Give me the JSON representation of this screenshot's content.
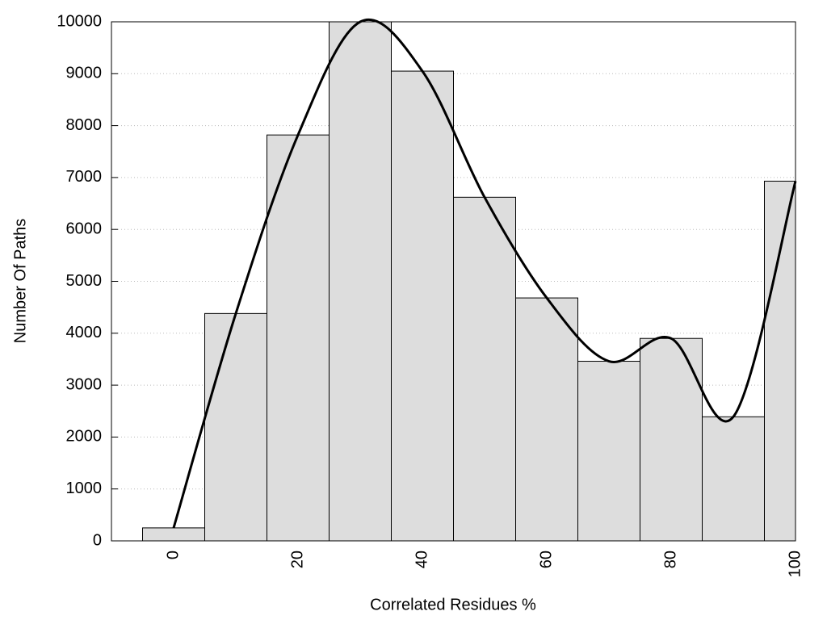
{
  "chart_data": {
    "type": "histogram",
    "xlabel": "Correlated Residues %",
    "ylabel": "Number Of Paths",
    "bins": [
      -5,
      5,
      15,
      25,
      35,
      45,
      55,
      65,
      75,
      85,
      95,
      100
    ],
    "values": [
      250,
      4380,
      7820,
      10000,
      9050,
      6620,
      4680,
      3460,
      3900,
      2390,
      6930
    ],
    "color": "#dddddd",
    "line": {
      "x": [
        0,
        10,
        20,
        30,
        40,
        50,
        60,
        70,
        80,
        90,
        100
      ],
      "values": [
        250,
        4380,
        7820,
        10000,
        9050,
        6620,
        4680,
        3460,
        3900,
        2390,
        6930
      ],
      "color": "#000000"
    },
    "xlim": [
      -10,
      100
    ],
    "ylim": [
      0,
      10000
    ],
    "xticks": [
      0,
      20,
      40,
      60,
      80,
      100
    ],
    "yticks": [
      0,
      1000,
      2000,
      3000,
      4000,
      5000,
      6000,
      7000,
      8000,
      9000,
      10000
    ],
    "grid": true
  }
}
